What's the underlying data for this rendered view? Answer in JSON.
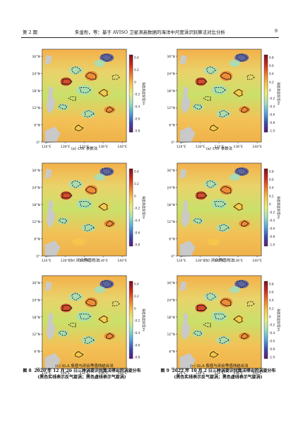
{
  "header": {
    "left": "第 2 期",
    "center": "朱金彤，等：基于 AVISO 卫星测高数据的海洋中尺度涡识别算法对比分析",
    "right": "9"
  },
  "palette": {
    "colorbar": [
      "#5a1a7a",
      "#3b4fb0",
      "#58a8dc",
      "#9fe0c0",
      "#e8f07a",
      "#f7c84a",
      "#ef7a2a",
      "#d02a1e",
      "#7a0f1e"
    ]
  },
  "colorbar_label": "海面高度异常/m",
  "axes": {
    "lat_ticks": [
      "30°N",
      "24°N",
      "18°N",
      "12°N",
      "6°N",
      "0°"
    ],
    "lon_ticks": [
      "124°E",
      "128°E",
      "132°E",
      "136°E",
      "140°E"
    ]
  },
  "figures": [
    {
      "number": "图 8",
      "title": "2020 年 12 月 26 日三种涡旋识别算法得出的涡旋分布",
      "note": "(黑色实线表示反气旋涡；黑色虚线表示气旋涡)",
      "cbar_ticks": [
        "0.4",
        "0.2",
        "0",
        "-0.2",
        "-0.4",
        "-0.6",
        "-0.8"
      ],
      "panels": [
        {
          "caption": "(a)  OW 参数法"
        },
        {
          "caption": "(b)  闭合等值线法"
        },
        {
          "caption": "(c)  SLA 极值与闭合等值线结合法"
        }
      ]
    },
    {
      "number": "图 9",
      "title": "2022 年 10 月 2 日三种涡旋识别算法得出的涡旋分布",
      "note": "(黑色实线表示反气旋涡；黑色虚线表示气旋涡)",
      "cbar_ticks": [
        "0.8",
        "0.6",
        "0.4",
        "0.2",
        "0",
        "-0.2",
        "-0.4",
        "-0.6",
        "-0.8",
        "-1.0"
      ],
      "panels": [
        {
          "caption": "(a)  OW 参数法"
        },
        {
          "caption": "(b)  闭合等值线法"
        },
        {
          "caption": "(c)  SLA 极值与闭合等值线结合法"
        }
      ]
    }
  ]
}
